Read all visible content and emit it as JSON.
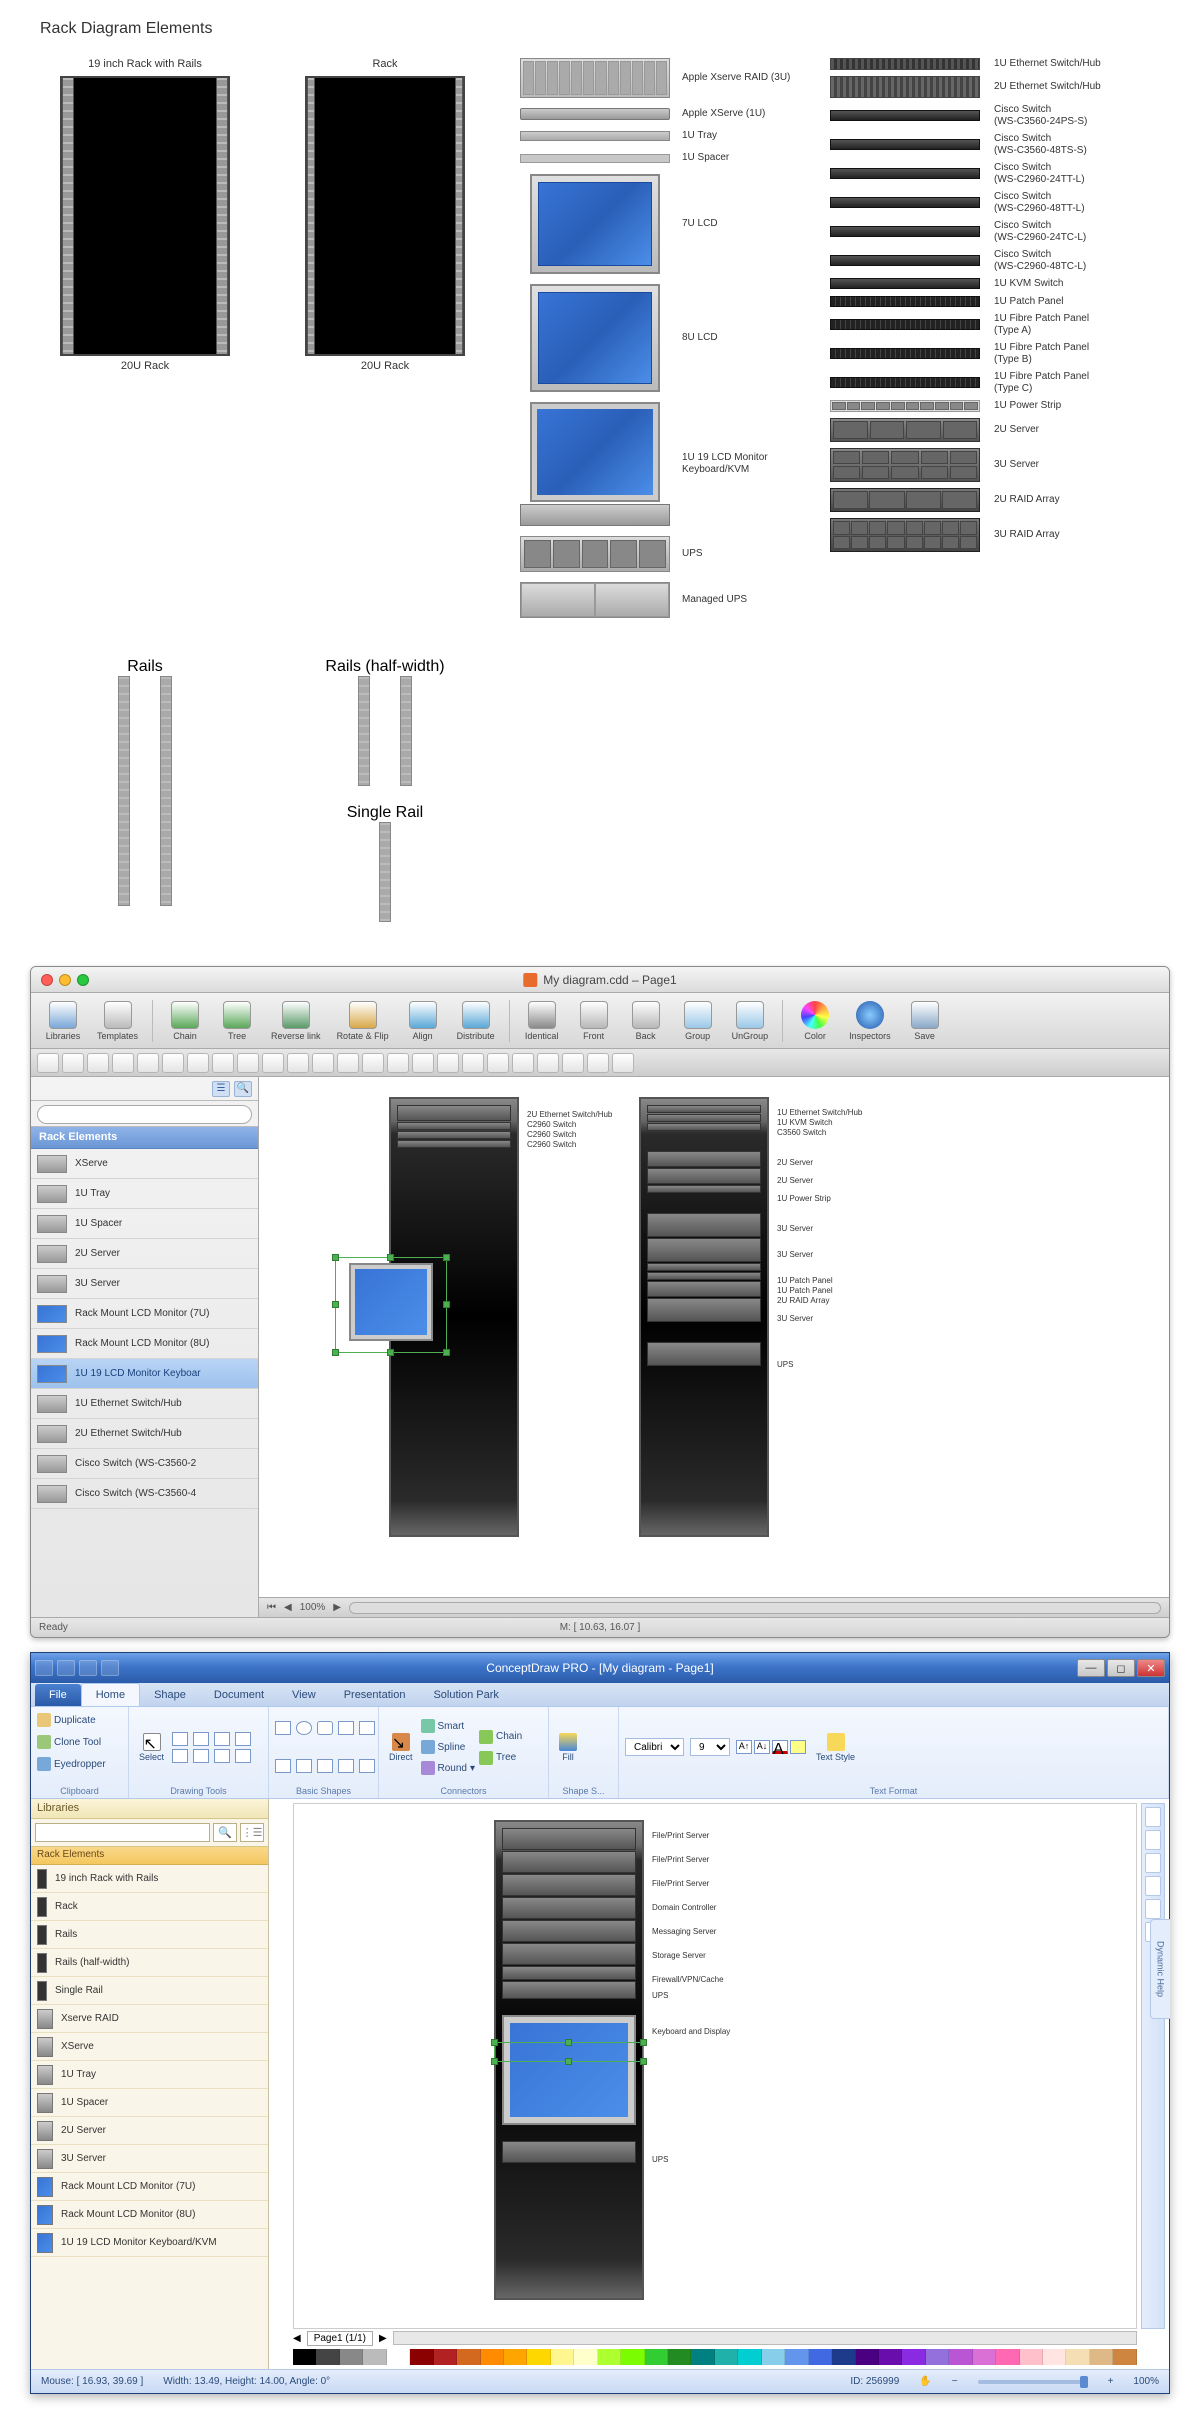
{
  "panel1": {
    "title": "Rack Diagram Elements",
    "racks": [
      {
        "top": "19 inch Rack with Rails",
        "bottom": "20U Rack"
      },
      {
        "top": "Rack",
        "bottom": "20U Rack"
      }
    ],
    "rails_labels": [
      "Rails",
      "Rails (half-width)",
      "Single Rail"
    ],
    "col3": [
      {
        "label": "Apple Xserve RAID (3U)"
      },
      {
        "label": "Apple XServe (1U)"
      },
      {
        "label": "1U Tray"
      },
      {
        "label": "1U Spacer"
      },
      {
        "label": "7U LCD"
      },
      {
        "label": "8U LCD"
      },
      {
        "label": "1U 19 LCD Monitor Keyboard/KVM"
      },
      {
        "label": "UPS"
      },
      {
        "label": "Managed UPS"
      }
    ],
    "col4": [
      {
        "label": "1U Ethernet Switch/Hub"
      },
      {
        "label": "2U Ethernet Switch/Hub"
      },
      {
        "label": "Cisco Switch\n(WS-C3560-24PS-S)"
      },
      {
        "label": "Cisco Switch\n(WS-C3560-48TS-S)"
      },
      {
        "label": "Cisco Switch\n(WS-C2960-24TT-L)"
      },
      {
        "label": "Cisco Switch\n(WS-C2960-48TT-L)"
      },
      {
        "label": "Cisco Switch\n(WS-C2960-24TC-L)"
      },
      {
        "label": "Cisco Switch\n(WS-C2960-48TC-L)"
      },
      {
        "label": "1U KVM Switch"
      },
      {
        "label": "1U Patch Panel"
      },
      {
        "label": "1U Fibre Patch Panel\n(Type A)"
      },
      {
        "label": "1U Fibre Patch Panel\n(Type B)"
      },
      {
        "label": "1U Fibre Patch Panel\n(Type C)"
      },
      {
        "label": "1U Power Strip"
      },
      {
        "label": "2U Server"
      },
      {
        "label": "3U Server"
      },
      {
        "label": "2U RAID Array"
      },
      {
        "label": "3U RAID Array"
      }
    ]
  },
  "panel2": {
    "window_title": "My diagram.cdd – Page1",
    "traffic_colors": [
      "#ff5f57",
      "#febc2e",
      "#28c840"
    ],
    "toolbar": [
      {
        "label": "Libraries",
        "color": "#7aa7d8"
      },
      {
        "label": "Templates",
        "color": "#bababa"
      },
      {
        "label": "Chain",
        "color": "#5aa85a"
      },
      {
        "label": "Tree",
        "color": "#5aa85a"
      },
      {
        "label": "Reverse link",
        "color": "#5a9a68"
      },
      {
        "label": "Rotate & Flip",
        "color": "#d8a848"
      },
      {
        "label": "Align",
        "color": "#5aa8d8"
      },
      {
        "label": "Distribute",
        "color": "#5aa8d8"
      },
      {
        "label": "Identical",
        "color": "#8a8a8a"
      },
      {
        "label": "Front",
        "color": "#b8b8b8"
      },
      {
        "label": "Back",
        "color": "#b8b8b8"
      },
      {
        "label": "Group",
        "color": "#9ac8e8"
      },
      {
        "label": "UnGroup",
        "color": "#9ac8e8"
      },
      {
        "label": "Color",
        "color": "#ffffff"
      },
      {
        "label": "Inspectors",
        "color": "#4aa8e8"
      },
      {
        "label": "Save",
        "color": "#8aa8c8"
      }
    ],
    "sidebar_header": "Rack Elements",
    "sidebar_items": [
      {
        "label": "XServe",
        "thumb": ""
      },
      {
        "label": "1U Tray",
        "thumb": ""
      },
      {
        "label": "1U Spacer",
        "thumb": ""
      },
      {
        "label": "2U Server",
        "thumb": ""
      },
      {
        "label": "3U Server",
        "thumb": ""
      },
      {
        "label": "Rack Mount LCD Monitor (7U)",
        "thumb": "lcd-t"
      },
      {
        "label": "Rack Mount LCD Monitor (8U)",
        "thumb": "lcd-t"
      },
      {
        "label": "1U 19 LCD Monitor Keyboar",
        "thumb": "lcd-t",
        "selected": true
      },
      {
        "label": "1U Ethernet Switch/Hub",
        "thumb": ""
      },
      {
        "label": "2U Ethernet Switch/Hub",
        "thumb": ""
      },
      {
        "label": "Cisco Switch (WS-C3560-2",
        "thumb": ""
      },
      {
        "label": "Cisco Switch (WS-C3560-4",
        "thumb": ""
      }
    ],
    "rack1_labels": [
      "2U Ethernet Switch/Hub",
      "C2960 Switch",
      "C2960 Switch",
      "C2960 Switch"
    ],
    "rack2_labels": [
      "1U Ethernet Switch/Hub",
      "1U KVM Switch",
      "C3560 Switch",
      "",
      "2U Server",
      "2U Server",
      "1U Power Strip",
      "",
      "3U Server",
      "3U Server",
      "1U Patch Panel",
      "1U Patch Panel",
      "2U RAID Array",
      "3U Server",
      "",
      "UPS"
    ],
    "zoom": "100%",
    "status_left": "Ready",
    "status_center": "M: [ 10.63, 16.07 ]"
  },
  "panel3": {
    "window_title": "ConceptDraw PRO - [My diagram - Page1]",
    "ribbon_tabs": [
      "File",
      "Home",
      "Shape",
      "Document",
      "View",
      "Presentation",
      "Solution Park"
    ],
    "active_tab": 1,
    "ribbon_groups": {
      "clipboard": {
        "label": "Clipboard",
        "items": [
          "Duplicate",
          "Clone Tool",
          "Eyedropper"
        ]
      },
      "drawing": {
        "label": "Drawing Tools",
        "select": "Select"
      },
      "shapes": {
        "label": "Basic Shapes"
      },
      "connectors": {
        "label": "Connectors",
        "direct": "Direct",
        "items": [
          "Smart",
          "Spline",
          "Round"
        ],
        "right": [
          "Chain",
          "Tree"
        ]
      },
      "shape_s": {
        "label": "Shape S...",
        "fill": "Fill"
      },
      "text": {
        "label": "Text Format",
        "font": "Calibri",
        "size": "9",
        "style": "Text Style"
      }
    },
    "sidebar_header": "Libraries",
    "sidebar_category": "Rack Elements",
    "sidebar_items": [
      {
        "label": "19 inch Rack with Rails",
        "thumb": "rack-t"
      },
      {
        "label": "Rack",
        "thumb": "rack-t"
      },
      {
        "label": "Rails",
        "thumb": "rack-t"
      },
      {
        "label": "Rails (half-width)",
        "thumb": "rack-t"
      },
      {
        "label": "Single Rail",
        "thumb": "rack-t"
      },
      {
        "label": "Xserve RAID",
        "thumb": ""
      },
      {
        "label": "XServe",
        "thumb": ""
      },
      {
        "label": "1U Tray",
        "thumb": ""
      },
      {
        "label": "1U Spacer",
        "thumb": ""
      },
      {
        "label": "2U Server",
        "thumb": ""
      },
      {
        "label": "3U Server",
        "thumb": ""
      },
      {
        "label": "Rack Mount LCD Monitor (7U)",
        "thumb": "lcd-t"
      },
      {
        "label": "Rack Mount LCD Monitor (8U)",
        "thumb": "lcd-t"
      },
      {
        "label": "1U 19 LCD Monitor Keyboard/KVM",
        "thumb": "lcd-t"
      }
    ],
    "rack_labels": [
      "File/Print Server",
      "File/Print Server",
      "File/Print Server",
      "Domain Controller",
      "Messaging Server",
      "Storage Server",
      "Firewall/VPN/Cache",
      "UPS",
      "",
      "Keyboard and Display",
      "",
      "UPS"
    ],
    "page_indicator": "Page1 (1/1)",
    "dynamic_help": "Dynamic Help",
    "status": {
      "mouse": "Mouse: [ 16.93, 39.69 ]",
      "dims": "Width: 13.49,  Height: 14.00,  Angle: 0°",
      "id": "ID: 256999",
      "zoom": "100%"
    },
    "color_bar": [
      "#000",
      "#444",
      "#888",
      "#bbb",
      "#fff",
      "#8b0000",
      "#b22222",
      "#d2691e",
      "#ff8c00",
      "#ffa500",
      "#ffd700",
      "#fff68f",
      "#ffffcc",
      "#adff2f",
      "#7cfc00",
      "#32cd32",
      "#228b22",
      "#008080",
      "#20b2aa",
      "#00ced1",
      "#87ceeb",
      "#6495ed",
      "#4169e1",
      "#1e3a8a",
      "#4b0082",
      "#6a0dad",
      "#8a2be2",
      "#9370db",
      "#ba55d3",
      "#da70d6",
      "#ff69b4",
      "#ffc0cb",
      "#ffe4e1",
      "#f5deb3",
      "#deb887",
      "#cd853f"
    ]
  }
}
